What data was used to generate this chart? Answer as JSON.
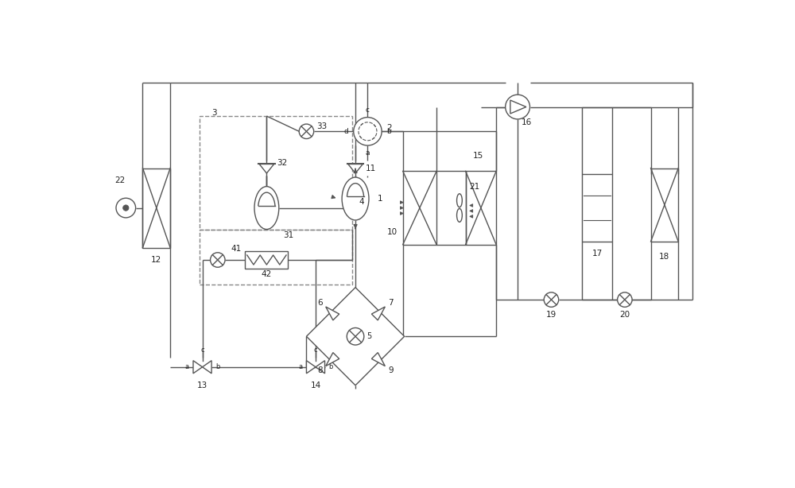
{
  "bg": "#ffffff",
  "lc": "#555555",
  "dc": "#888888",
  "lw": 1.0,
  "fw": 10.0,
  "fh": 6.14,
  "xlim": [
    0,
    100
  ],
  "ylim": [
    0,
    61.4
  ]
}
